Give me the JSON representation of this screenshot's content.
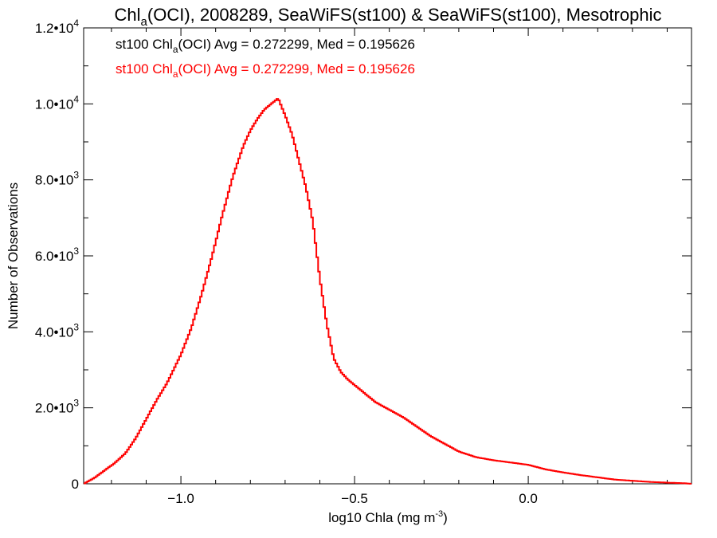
{
  "chart_data": {
    "type": "histogram-step",
    "title": {
      "main": "Chl",
      "sub": "a",
      "rest": "(OCI), 2008289, SeaWiFS(st100) & SeaWiFS(st100), Mesotrophic"
    },
    "xlabel": {
      "main": "log10 Chla (mg m",
      "sup": "-3",
      "close": ")"
    },
    "ylabel": "Number of Observations",
    "xlim": [
      -1.28,
      0.47
    ],
    "ylim": [
      0,
      12000
    ],
    "xticks": [
      {
        "value": -1.0,
        "label": "−1.0"
      },
      {
        "value": -0.5,
        "label": "−0.5"
      },
      {
        "value": 0.0,
        "label": "0.0"
      }
    ],
    "yticks": [
      {
        "value": 0,
        "mantissa": "0",
        "exp": ""
      },
      {
        "value": 2000,
        "mantissa": "2.0•10",
        "exp": "3"
      },
      {
        "value": 4000,
        "mantissa": "4.0•10",
        "exp": "3"
      },
      {
        "value": 6000,
        "mantissa": "6.0•10",
        "exp": "3"
      },
      {
        "value": 8000,
        "mantissa": "8.0•10",
        "exp": "3"
      },
      {
        "value": 10000,
        "mantissa": "1.0•10",
        "exp": "4"
      },
      {
        "value": 12000,
        "mantissa": "1.2•10",
        "exp": "4"
      }
    ],
    "annotations": [
      {
        "pre": "st100 Chl",
        "sub": "a",
        "post": "(OCI) Avg = 0.272299, Med = 0.195626",
        "color": "#000000"
      },
      {
        "pre": "st100 Chl",
        "sub": "a",
        "post": "(OCI) Avg = 0.272299, Med = 0.195626",
        "color": "#ff0000"
      }
    ],
    "series": [
      {
        "color": "#ff0000",
        "x": [
          -1.28,
          -1.25,
          -1.22,
          -1.19,
          -1.16,
          -1.13,
          -1.1,
          -1.07,
          -1.04,
          -1.0,
          -0.97,
          -0.94,
          -0.91,
          -0.88,
          -0.85,
          -0.82,
          -0.8,
          -0.78,
          -0.76,
          -0.74,
          -0.72,
          -0.7,
          -0.68,
          -0.66,
          -0.64,
          -0.62,
          -0.6,
          -0.58,
          -0.56,
          -0.54,
          -0.52,
          -0.5,
          -0.48,
          -0.46,
          -0.44,
          -0.42,
          -0.4,
          -0.36,
          -0.32,
          -0.28,
          -0.24,
          -0.2,
          -0.15,
          -0.1,
          -0.05,
          0.0,
          0.05,
          0.1,
          0.15,
          0.2,
          0.25,
          0.3,
          0.35,
          0.4,
          0.45,
          0.47
        ],
        "values": [
          0,
          150,
          350,
          550,
          800,
          1200,
          1700,
          2200,
          2650,
          3400,
          4100,
          5000,
          6000,
          7100,
          8100,
          8900,
          9300,
          9600,
          9850,
          10000,
          10150,
          9700,
          9200,
          8500,
          7800,
          6900,
          5400,
          4200,
          3300,
          2950,
          2750,
          2600,
          2450,
          2300,
          2150,
          2050,
          1950,
          1750,
          1500,
          1250,
          1050,
          850,
          700,
          620,
          560,
          500,
          380,
          300,
          230,
          170,
          110,
          80,
          50,
          30,
          15,
          0
        ]
      }
    ]
  }
}
